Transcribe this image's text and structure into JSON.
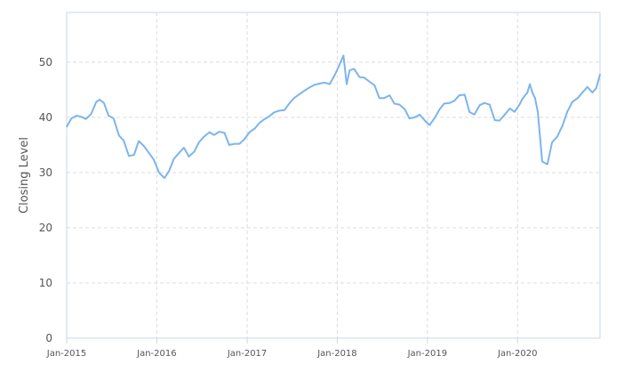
{
  "chart_data": {
    "type": "line",
    "title": "",
    "xlabel": "",
    "ylabel": "Closing Level",
    "ylim": [
      0,
      59
    ],
    "xlim": [
      "2015-01-01",
      "2020-11-30"
    ],
    "grid": true,
    "y_ticks": [
      "0",
      "10",
      "20",
      "30",
      "40",
      "50"
    ],
    "x_ticks": [
      {
        "date": "2015-01-01",
        "label": "Jan-2015"
      },
      {
        "date": "2016-01-01",
        "label": "Jan-2016"
      },
      {
        "date": "2017-01-01",
        "label": "Jan-2017"
      },
      {
        "date": "2018-01-01",
        "label": "Jan-2018"
      },
      {
        "date": "2019-01-01",
        "label": "Jan-2019"
      },
      {
        "date": "2020-01-01",
        "label": "Jan-2020"
      }
    ],
    "series": [
      {
        "color": "#7cb5ec",
        "x": [
          "2015-01-01",
          "2015-01-20",
          "2015-02-10",
          "2015-03-01",
          "2015-03-20",
          "2015-04-10",
          "2015-05-01",
          "2015-05-15",
          "2015-06-01",
          "2015-06-20",
          "2015-07-10",
          "2015-08-01",
          "2015-08-20",
          "2015-09-10",
          "2015-10-01",
          "2015-10-20",
          "2015-11-10",
          "2015-12-01",
          "2015-12-20",
          "2016-01-10",
          "2016-02-01",
          "2016-02-20",
          "2016-03-10",
          "2016-04-01",
          "2016-04-20",
          "2016-05-10",
          "2016-06-01",
          "2016-06-20",
          "2016-07-10",
          "2016-08-01",
          "2016-08-20",
          "2016-09-10",
          "2016-10-01",
          "2016-10-20",
          "2016-11-10",
          "2016-12-01",
          "2016-12-20",
          "2017-01-10",
          "2017-02-01",
          "2017-02-20",
          "2017-03-10",
          "2017-04-01",
          "2017-04-20",
          "2017-05-10",
          "2017-06-01",
          "2017-06-20",
          "2017-07-10",
          "2017-08-01",
          "2017-08-20",
          "2017-09-10",
          "2017-10-01",
          "2017-10-20",
          "2017-11-10",
          "2017-12-01",
          "2017-12-20",
          "2018-01-10",
          "2018-01-26",
          "2018-02-08",
          "2018-02-20",
          "2018-03-10",
          "2018-04-01",
          "2018-04-20",
          "2018-05-10",
          "2018-06-01",
          "2018-06-20",
          "2018-07-10",
          "2018-08-01",
          "2018-08-20",
          "2018-09-10",
          "2018-10-01",
          "2018-10-20",
          "2018-11-10",
          "2018-12-01",
          "2018-12-24",
          "2019-01-10",
          "2019-02-01",
          "2019-02-20",
          "2019-03-10",
          "2019-04-01",
          "2019-04-20",
          "2019-05-10",
          "2019-06-01",
          "2019-06-20",
          "2019-07-10",
          "2019-08-01",
          "2019-08-20",
          "2019-09-10",
          "2019-10-01",
          "2019-10-20",
          "2019-11-10",
          "2019-12-01",
          "2019-12-20",
          "2020-01-10",
          "2020-01-20",
          "2020-02-10",
          "2020-02-20",
          "2020-03-01",
          "2020-03-12",
          "2020-03-23",
          "2020-04-10",
          "2020-05-01",
          "2020-05-20",
          "2020-06-10",
          "2020-07-01",
          "2020-07-20",
          "2020-08-10",
          "2020-09-01",
          "2020-09-20",
          "2020-10-10",
          "2020-10-30",
          "2020-11-15",
          "2020-11-30"
        ],
        "y": [
          38.3,
          39.8,
          40.3,
          40.1,
          39.7,
          40.6,
          42.8,
          43.2,
          42.6,
          40.3,
          39.8,
          36.7,
          35.8,
          33.0,
          33.2,
          35.7,
          34.8,
          33.5,
          32.3,
          30.0,
          29.0,
          30.3,
          32.5,
          33.6,
          34.5,
          32.9,
          33.8,
          35.5,
          36.5,
          37.3,
          36.8,
          37.4,
          37.2,
          35.0,
          35.2,
          35.2,
          36.0,
          37.3,
          38.0,
          39.0,
          39.6,
          40.2,
          40.9,
          41.2,
          41.3,
          42.5,
          43.5,
          44.2,
          44.8,
          45.4,
          45.9,
          46.1,
          46.3,
          46.0,
          47.5,
          49.5,
          51.2,
          46.0,
          48.5,
          48.8,
          47.3,
          47.2,
          46.5,
          45.8,
          43.5,
          43.5,
          44.0,
          42.5,
          42.3,
          41.5,
          39.8,
          40.0,
          40.5,
          39.3,
          38.6,
          40.0,
          41.5,
          42.5,
          42.6,
          43.0,
          44.0,
          44.1,
          41.0,
          40.5,
          42.2,
          42.6,
          42.3,
          39.5,
          39.4,
          40.5,
          41.6,
          41.0,
          42.4,
          43.3,
          44.5,
          46.0,
          44.5,
          43.5,
          41.0,
          32.0,
          31.5,
          35.5,
          36.5,
          38.5,
          41.0,
          42.8,
          43.5,
          44.5,
          45.5,
          44.5,
          45.3,
          47.8
        ]
      }
    ]
  }
}
